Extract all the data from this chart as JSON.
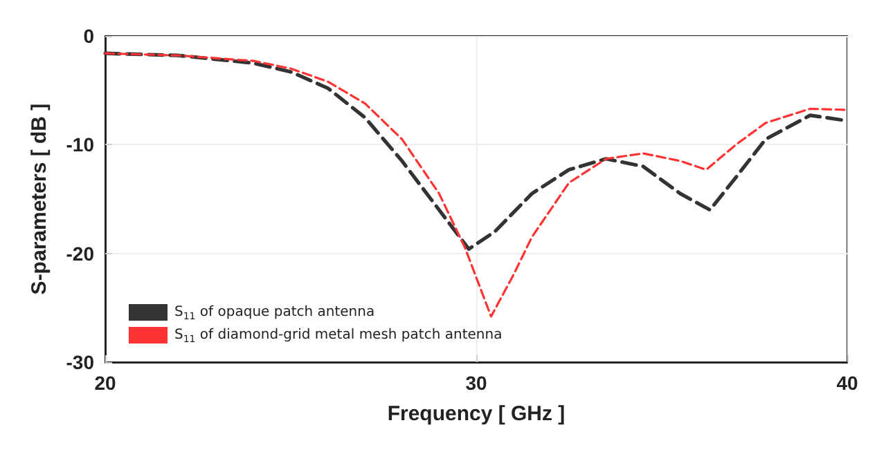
{
  "chart_data": {
    "type": "line",
    "xlabel": "Frequency [ GHz ]",
    "ylabel": "S-parameters [ dB ]",
    "xlim": [
      20,
      40
    ],
    "xticks": [
      20,
      30,
      40
    ],
    "ylim": [
      -30,
      0
    ],
    "yticks": [
      -30,
      -20,
      -10,
      0
    ],
    "grid": true,
    "legend": "bottom left",
    "line_style": "dashed",
    "marker": "none",
    "series": [
      {
        "name": "S$_{11}$ of opaque patch antenna",
        "color": "#333333",
        "x": [
          20,
          22,
          24,
          25,
          26,
          27,
          28,
          29,
          29.8,
          30.5,
          31.5,
          32.5,
          33.5,
          34.5,
          35.5,
          36.3,
          37,
          37.8,
          39,
          40
        ],
        "values": [
          -1.6,
          -1.8,
          -2.5,
          -3.3,
          -4.8,
          -7.5,
          -11.5,
          -16,
          -19.6,
          -18,
          -14.5,
          -12.3,
          -11.3,
          -12,
          -14.5,
          -16,
          -13,
          -9.5,
          -7.3,
          -7.8
        ]
      },
      {
        "name": "S$_{11}$ of diamond-grid metal mesh patch antenna",
        "color": "#ff3333",
        "x": [
          20,
          22,
          24,
          25,
          26,
          27,
          28,
          29,
          29.7,
          30.4,
          31,
          31.5,
          32.5,
          33.5,
          34.5,
          35.5,
          36.2,
          37,
          37.8,
          39,
          40
        ],
        "values": [
          -1.6,
          -1.8,
          -2.3,
          -3,
          -4.2,
          -6.2,
          -9.5,
          -14.5,
          -19.5,
          -25.8,
          -22,
          -18.5,
          -13.5,
          -11.3,
          -10.8,
          -11.5,
          -12.3,
          -10,
          -8,
          -6.7,
          -6.8
        ]
      }
    ]
  }
}
